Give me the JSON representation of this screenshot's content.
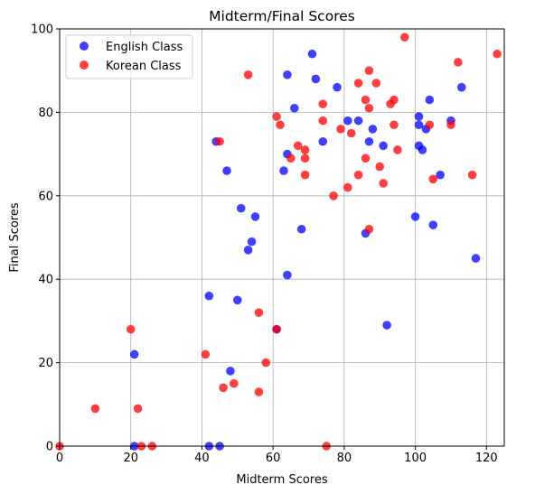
{
  "chart_data": {
    "type": "scatter",
    "title": "Midterm/Final Scores",
    "xlabel": "Midterm Scores",
    "ylabel": "Final Scores",
    "xlim": [
      0,
      125
    ],
    "ylim": [
      0,
      100
    ],
    "xticks": [
      0,
      20,
      40,
      60,
      80,
      100,
      120
    ],
    "yticks": [
      0,
      20,
      40,
      60,
      80,
      100
    ],
    "grid": true,
    "legend_position": "top-left",
    "series": [
      {
        "name": "English Class",
        "color": "#0000ff",
        "points": [
          [
            21,
            22
          ],
          [
            21,
            0
          ],
          [
            42,
            0
          ],
          [
            45,
            0
          ],
          [
            42,
            36
          ],
          [
            44,
            73
          ],
          [
            47,
            66
          ],
          [
            48,
            18
          ],
          [
            50,
            35
          ],
          [
            51,
            57
          ],
          [
            53,
            47
          ],
          [
            54,
            49
          ],
          [
            55,
            55
          ],
          [
            61,
            28
          ],
          [
            63,
            66
          ],
          [
            64,
            70
          ],
          [
            64,
            89
          ],
          [
            64,
            41
          ],
          [
            66,
            81
          ],
          [
            68,
            52
          ],
          [
            71,
            94
          ],
          [
            72,
            88
          ],
          [
            74,
            73
          ],
          [
            78,
            86
          ],
          [
            81,
            78
          ],
          [
            84,
            78
          ],
          [
            86,
            51
          ],
          [
            87,
            73
          ],
          [
            88,
            76
          ],
          [
            91,
            72
          ],
          [
            92,
            29
          ],
          [
            100,
            55
          ],
          [
            101,
            77
          ],
          [
            101,
            79
          ],
          [
            101,
            72
          ],
          [
            102,
            71
          ],
          [
            103,
            76
          ],
          [
            104,
            83
          ],
          [
            105,
            53
          ],
          [
            107,
            65
          ],
          [
            110,
            78
          ],
          [
            113,
            86
          ],
          [
            117,
            45
          ]
        ]
      },
      {
        "name": "Korean Class",
        "color": "#ff0000",
        "points": [
          [
            0,
            0
          ],
          [
            10,
            9
          ],
          [
            20,
            28
          ],
          [
            22,
            9
          ],
          [
            23,
            0
          ],
          [
            26,
            0
          ],
          [
            41,
            22
          ],
          [
            45,
            73
          ],
          [
            46,
            14
          ],
          [
            49,
            15
          ],
          [
            53,
            89
          ],
          [
            56,
            32
          ],
          [
            56,
            13
          ],
          [
            58,
            20
          ],
          [
            61,
            28
          ],
          [
            61,
            79
          ],
          [
            62,
            77
          ],
          [
            65,
            69
          ],
          [
            67,
            72
          ],
          [
            69,
            71
          ],
          [
            69,
            69
          ],
          [
            69,
            65
          ],
          [
            74,
            82
          ],
          [
            74,
            78
          ],
          [
            75,
            0
          ],
          [
            77,
            60
          ],
          [
            79,
            76
          ],
          [
            81,
            62
          ],
          [
            82,
            75
          ],
          [
            84,
            87
          ],
          [
            84,
            65
          ],
          [
            86,
            83
          ],
          [
            86,
            69
          ],
          [
            87,
            90
          ],
          [
            87,
            81
          ],
          [
            87,
            52
          ],
          [
            89,
            87
          ],
          [
            90,
            67
          ],
          [
            91,
            63
          ],
          [
            93,
            82
          ],
          [
            94,
            83
          ],
          [
            94,
            77
          ],
          [
            95,
            71
          ],
          [
            97,
            98
          ],
          [
            104,
            77
          ],
          [
            105,
            64
          ],
          [
            110,
            77
          ],
          [
            112,
            92
          ],
          [
            116,
            65
          ],
          [
            123,
            94
          ]
        ]
      }
    ]
  }
}
